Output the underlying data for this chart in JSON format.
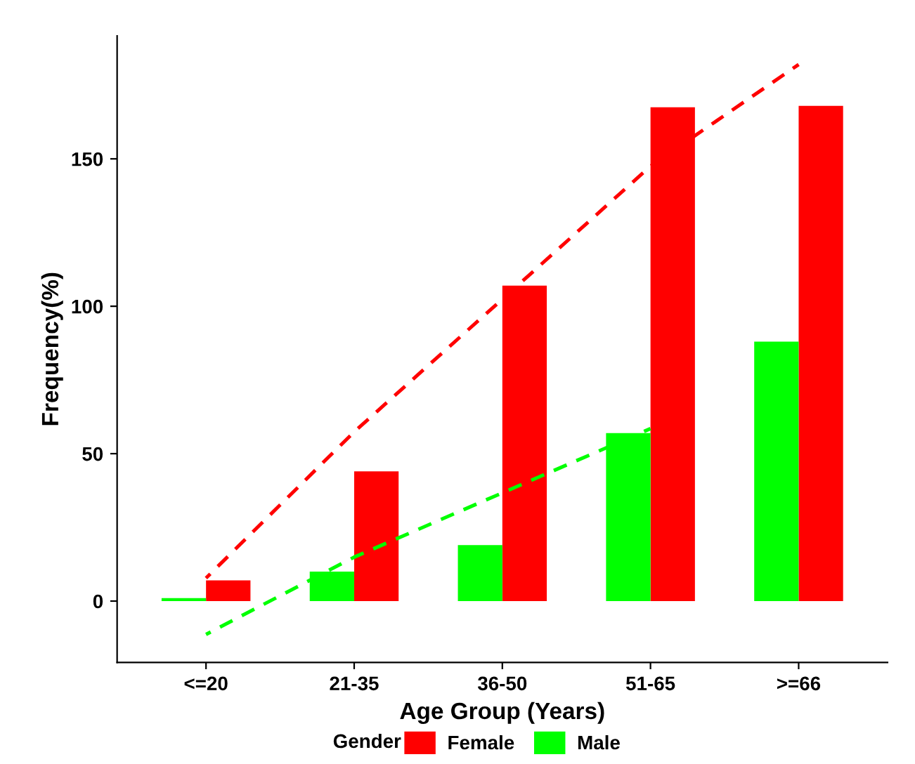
{
  "chart_data": {
    "type": "bar",
    "xlabel": "Age Group (Years)",
    "ylabel": "Frequency(%)",
    "legend_title": "Gender",
    "categories": [
      "<=20",
      "21-35",
      "36-50",
      "51-65",
      ">=66"
    ],
    "ylim": [
      -20.8,
      191.7
    ],
    "yticks": [
      0,
      50,
      100,
      150
    ],
    "grid": false,
    "legend": "bottom",
    "series": [
      {
        "name": "Female",
        "color": "#ff0000",
        "values": [
          7,
          44,
          107,
          167.5,
          168
        ]
      },
      {
        "name": "Male",
        "color": "#00ff00",
        "values": [
          1,
          10,
          19,
          57,
          88
        ]
      },
      {
        "type": "line",
        "color": "#ff0000",
        "line_style": "dashed",
        "values": [
          7.8,
          57.4,
          102.4,
          147.5,
          182
        ]
      },
      {
        "type": "line",
        "color": "#00ff00",
        "line_style": "dashed",
        "values": [
          -11.3,
          14.9,
          36.7,
          58.5,
          null
        ]
      }
    ]
  }
}
